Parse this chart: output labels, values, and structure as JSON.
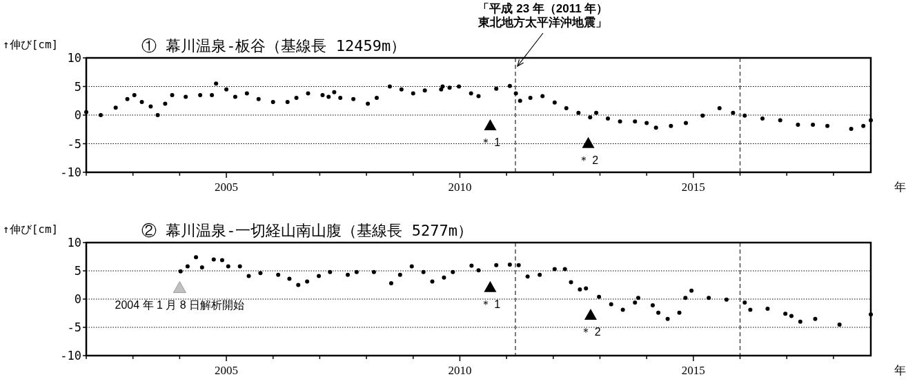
{
  "chart_data": [
    {
      "type": "scatter",
      "title": "① 幕川温泉-板谷（基線長 12459m）",
      "ylabel": "↑伸び[cm]",
      "xlabel": "年",
      "xlim": [
        2002,
        2018.8
      ],
      "ylim": [
        -10,
        10
      ],
      "yticks": [
        10,
        5,
        0,
        -5,
        -10
      ],
      "xticks": [
        {
          "value": 2002,
          "label": null
        },
        {
          "value": 2003,
          "label": null
        },
        {
          "value": 2004,
          "label": null
        },
        2005,
        {
          "value": 2006,
          "label": null
        },
        {
          "value": 2007,
          "label": null
        },
        {
          "value": 2008,
          "label": null
        },
        {
          "value": 2009,
          "label": null
        },
        2010,
        {
          "value": 2011,
          "label": null
        },
        {
          "value": 2012,
          "label": null
        },
        {
          "value": 2013,
          "label": null
        },
        {
          "value": 2014,
          "label": null
        },
        2015,
        {
          "value": 2016,
          "label": null
        },
        {
          "value": 2017,
          "label": null
        },
        {
          "value": 2018,
          "label": null
        }
      ],
      "grid": "y",
      "marker": "circle",
      "series": [
        {
          "color": "#000000",
          "x": [
            2002.0,
            2002.31,
            2002.63,
            2002.88,
            2003.03,
            2003.19,
            2003.38,
            2003.53,
            2003.69,
            2003.84,
            2004.13,
            2004.44,
            2004.69,
            2004.78,
            2005.0,
            2005.19,
            2005.44,
            2005.69,
            2006.0,
            2006.31,
            2006.5,
            2006.75,
            2007.06,
            2007.19,
            2007.31,
            2007.44,
            2007.72,
            2008.03,
            2008.22,
            2008.5,
            2008.75,
            2009.0,
            2009.25,
            2009.63,
            2009.78,
            2009.6,
            2009.98,
            2010.24,
            2010.4,
            2010.78,
            2011.07,
            2011.2,
            2011.29,
            2011.51,
            2011.77,
            2012.03,
            2012.28,
            2012.54,
            2012.79,
            2012.92,
            2013.17,
            2013.43,
            2013.75,
            2014.0,
            2014.2,
            2014.52,
            2014.84,
            2015.2,
            2015.56,
            2015.85,
            2016.1,
            2016.48,
            2016.86,
            2017.24,
            2017.56,
            2017.87,
            2018.38,
            2018.64,
            2018.8
          ],
          "values": [
            0.5,
            0,
            1.3,
            2.8,
            3.5,
            2.3,
            1.5,
            0,
            2,
            3.5,
            3.2,
            3.5,
            3.5,
            5.5,
            4.5,
            3.2,
            3.8,
            2.8,
            2.3,
            2.3,
            3,
            3.8,
            3.5,
            3.2,
            4,
            3,
            2.8,
            2,
            3,
            5,
            4.5,
            3.8,
            4.3,
            5,
            4.8,
            4.5,
            5,
            3.8,
            3.3,
            4.6,
            5.1,
            3.8,
            2.5,
            3,
            3.3,
            2.2,
            1.2,
            0.4,
            -0.4,
            0.4,
            -0.6,
            -1.1,
            -1.1,
            -1.4,
            -2.2,
            -1.9,
            -1.4,
            -0.1,
            1.2,
            0.4,
            -0.1,
            -0.6,
            -0.9,
            -1.7,
            -1.7,
            -1.9,
            -2.4,
            -1.9,
            -0.9
          ]
        },
        {
          "type": "scatter",
          "marker": "triangle",
          "x": [
            2010.65,
            2012.75
          ],
          "values": [
            -1.8,
            -4.9
          ],
          "colors": [
            "#000000",
            "#000000"
          ]
        }
      ],
      "ref_lines": [
        {
          "axis": "x",
          "value": 2011.19,
          "label": "「平成 23 年（2011 年）東北地方太平洋沖地震」",
          "line_style": "dashed"
        },
        {
          "axis": "x",
          "value": 2016.0,
          "line_style": "dashed"
        }
      ],
      "annotations": [
        {
          "text": "＊ 1",
          "x": 2010.65,
          "y": -1.8
        },
        {
          "text": "＊ 2",
          "x": 2012.75,
          "y": -4.9
        }
      ]
    },
    {
      "type": "scatter",
      "title": "② 幕川温泉-一切経山南山腹（基線長 5277m）",
      "ylabel": "↑伸び[cm]",
      "xlabel": "年",
      "xlim": [
        2002,
        2018.8
      ],
      "ylim": [
        -10,
        10
      ],
      "yticks": [
        10,
        5,
        0,
        -5,
        -10
      ],
      "xticks": [
        {
          "value": 2002,
          "label": null
        },
        {
          "value": 2003,
          "label": null
        },
        {
          "value": 2004,
          "label": null
        },
        2005,
        {
          "value": 2006,
          "label": null
        },
        {
          "value": 2007,
          "label": null
        },
        {
          "value": 2008,
          "label": null
        },
        {
          "value": 2009,
          "label": null
        },
        2010,
        {
          "value": 2011,
          "label": null
        },
        {
          "value": 2012,
          "label": null
        },
        {
          "value": 2013,
          "label": null
        },
        {
          "value": 2014,
          "label": null
        },
        2015,
        {
          "value": 2016,
          "label": null
        },
        {
          "value": 2017,
          "label": null
        },
        {
          "value": 2018,
          "label": null
        }
      ],
      "grid": "y",
      "marker": "circle",
      "series": [
        {
          "color": "#000000",
          "x": [
            2004.02,
            2004.17,
            2004.35,
            2004.48,
            2004.73,
            2004.91,
            2005.04,
            2005.29,
            2005.48,
            2005.73,
            2006.11,
            2006.35,
            2006.54,
            2006.73,
            2006.98,
            2007.22,
            2007.6,
            2007.79,
            2008.16,
            2008.53,
            2008.72,
            2008.97,
            2009.22,
            2009.41,
            2009.66,
            2009.85,
            2010.25,
            2010.4,
            2010.78,
            2011.07,
            2011.26,
            2011.45,
            2011.71,
            2012.03,
            2012.25,
            2012.38,
            2012.57,
            2012.7,
            2012.98,
            2013.24,
            2013.49,
            2013.75,
            2013.82,
            2014.13,
            2014.25,
            2014.45,
            2014.7,
            2014.83,
            2014.96,
            2015.33,
            2015.71,
            2016.1,
            2016.22,
            2016.59,
            2016.97,
            2017.1,
            2017.29,
            2017.61,
            2018.13,
            2018.8
          ],
          "values": [
            4.9,
            5.8,
            7.4,
            5.6,
            7,
            6.9,
            5.8,
            5.8,
            4.1,
            4.6,
            4.3,
            3.6,
            2.5,
            3.1,
            4.1,
            4.8,
            4.3,
            4.8,
            4.8,
            2.8,
            4.3,
            5.8,
            4.8,
            3.1,
            3.8,
            4.8,
            5.9,
            5.1,
            6,
            6.1,
            6,
            4,
            4.3,
            5.3,
            5.3,
            3,
            1.7,
            1.9,
            0.4,
            -0.9,
            -1.9,
            -0.6,
            0.2,
            -1.1,
            -2.4,
            -3.5,
            -2.4,
            0.2,
            1.5,
            0.2,
            -0.1,
            -0.6,
            -1.9,
            -1.7,
            -2.6,
            -3,
            -4,
            -3.5,
            -4.5,
            -2.7
          ]
        },
        {
          "type": "scatter",
          "marker": "triangle",
          "x": [
            2004.0,
            2010.65,
            2012.8
          ],
          "values": [
            2,
            2.1,
            -2.8
          ],
          "colors": [
            "#c0c0c0",
            "#000000",
            "#000000"
          ]
        }
      ],
      "ref_lines": [
        {
          "axis": "x",
          "value": 2011.19,
          "line_style": "dashed"
        },
        {
          "axis": "x",
          "value": 2016.0,
          "line_style": "dashed"
        }
      ],
      "annotations": [
        {
          "text": "2004 年 1 月 8 日解析開始",
          "x": 2004.0,
          "y": 2
        },
        {
          "text": "＊ 1",
          "x": 2010.65,
          "y": 2.1
        },
        {
          "text": "＊ 2",
          "x": 2012.8,
          "y": -2.8
        }
      ]
    }
  ]
}
